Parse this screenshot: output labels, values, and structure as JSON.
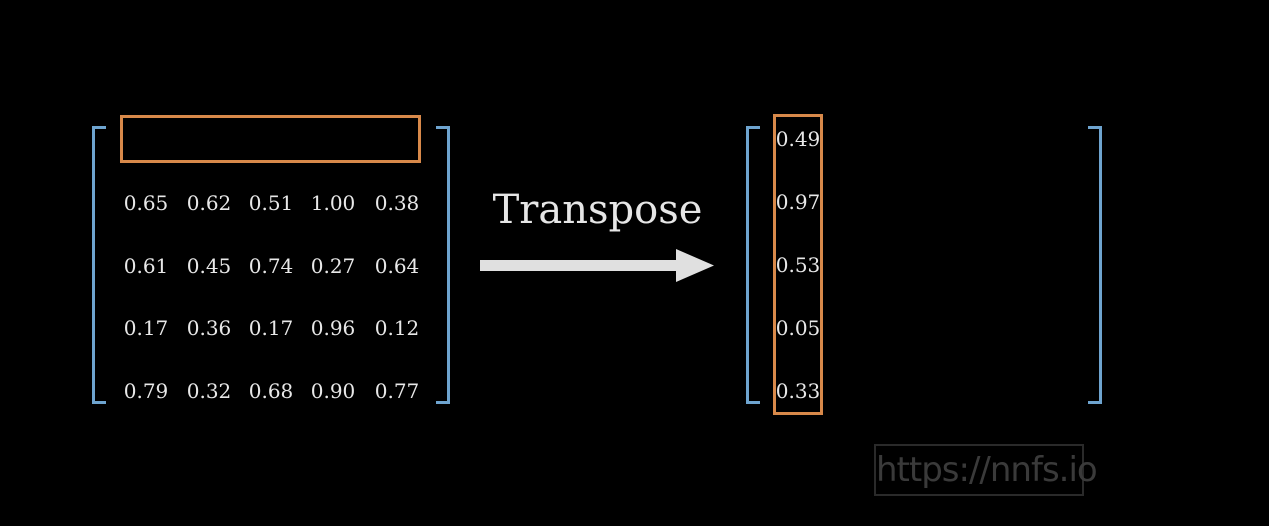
{
  "left_matrix": {
    "rows": [
      [
        "0.65",
        "0.62",
        "0.51",
        "1.00",
        "0.38"
      ],
      [
        "0.61",
        "0.45",
        "0.74",
        "0.27",
        "0.64"
      ],
      [
        "0.17",
        "0.36",
        "0.17",
        "0.96",
        "0.12"
      ],
      [
        "0.79",
        "0.32",
        "0.68",
        "0.90",
        "0.77"
      ]
    ]
  },
  "operation": {
    "label": "Transpose"
  },
  "right_matrix": {
    "column": [
      "0.49",
      "0.97",
      "0.53",
      "0.05",
      "0.33"
    ]
  },
  "watermark": {
    "text": "https://nnfs.io"
  },
  "colors": {
    "background": "#000000",
    "bracket": "#6ea4cf",
    "highlight": "#d8894a",
    "text": "#e8e8e8",
    "arrow": "#e0e0e0"
  }
}
